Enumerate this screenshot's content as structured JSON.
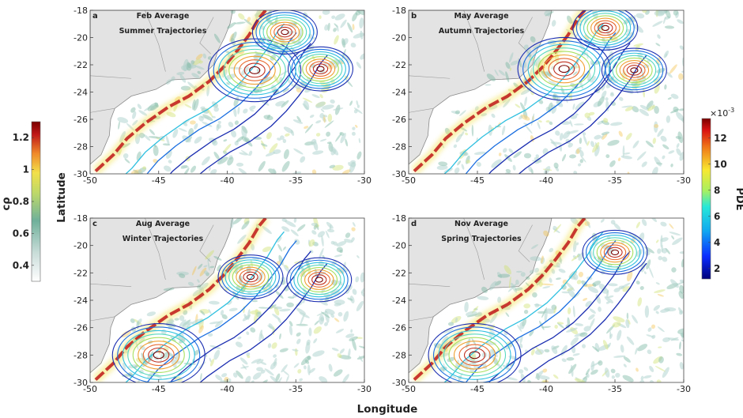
{
  "figure": {
    "xlabel": "Longitude",
    "ylabel": "Latitude",
    "x_ticks": [
      "-50",
      "-45",
      "-40",
      "-35",
      "-30"
    ],
    "y_ticks": [
      "-18",
      "-20",
      "-22",
      "-24",
      "-26",
      "-28",
      "-30"
    ],
    "left_colorbar": {
      "label": "cρ",
      "ticks": [
        "1.2",
        "1",
        "0.8",
        "0.6",
        "0.4"
      ],
      "range": [
        0.3,
        1.3
      ]
    },
    "right_colorbar": {
      "label": "PDE",
      "exponent": "×10",
      "exponent_power": "-3",
      "ticks": [
        "12",
        "10",
        "8",
        "6",
        "4",
        "2"
      ],
      "range": [
        1.2,
        13.5
      ]
    },
    "colors": {
      "land": "#e3e3e3",
      "coast": "#8a8a8a",
      "contour_high": "#c03020",
      "contour_mid": "#f0a030",
      "contour_cool": "#30c0e0",
      "contour_low": "#1a2db0"
    }
  },
  "chart_data": [
    {
      "type": "heatmap",
      "panel": "a",
      "title": "Feb Average",
      "subtitle": "Summer Trajectories",
      "xlim": [
        -50,
        -30
      ],
      "ylim": [
        -30,
        -18
      ],
      "pde_contour_centers": [
        {
          "lon": -38,
          "lat": -22.4
        },
        {
          "lon": -35.8,
          "lat": -19.6
        },
        {
          "lon": -33.2,
          "lat": -22.3
        }
      ]
    },
    {
      "type": "heatmap",
      "panel": "b",
      "title": "May Average",
      "subtitle": "Autumn Trajectories",
      "xlim": [
        -50,
        -30
      ],
      "ylim": [
        -30,
        -18
      ],
      "pde_contour_centers": [
        {
          "lon": -38.7,
          "lat": -22.3
        },
        {
          "lon": -35.7,
          "lat": -19.3
        },
        {
          "lon": -33.6,
          "lat": -22.4
        }
      ]
    },
    {
      "type": "heatmap",
      "panel": "c",
      "title": "Aug Average",
      "subtitle": "Winter Trajectories",
      "xlim": [
        -50,
        -30
      ],
      "ylim": [
        -30,
        -18
      ],
      "pde_contour_centers": [
        {
          "lon": -45,
          "lat": -28
        },
        {
          "lon": -38.3,
          "lat": -22.3
        },
        {
          "lon": -33.3,
          "lat": -22.5
        }
      ]
    },
    {
      "type": "heatmap",
      "panel": "d",
      "title": "Nov Average",
      "subtitle": "Spring Trajectories",
      "xlim": [
        -50,
        -30
      ],
      "ylim": [
        -30,
        -18
      ],
      "pde_contour_centers": [
        {
          "lon": -45.2,
          "lat": -28
        },
        {
          "lon": -35,
          "lat": -20.5
        }
      ]
    }
  ]
}
